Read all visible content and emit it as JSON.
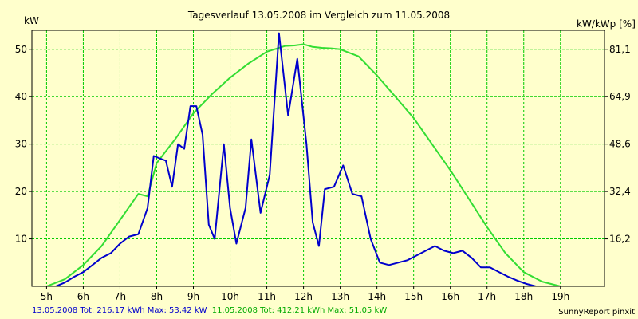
{
  "chart_data": {
    "type": "line",
    "title": "Tagesverlauf 13.05.2008 im Vergleich zum 11.05.2008",
    "ylabel_left": "kW",
    "ylabel_right": "kW/kWp [%]",
    "x_ticks": [
      "5h",
      "6h",
      "7h",
      "8h",
      "9h",
      "10h",
      "11h",
      "12h",
      "13h",
      "14h",
      "15h",
      "16h",
      "17h",
      "18h",
      "19h"
    ],
    "y_left_ticks": [
      10,
      20,
      30,
      40,
      50
    ],
    "y_right_ticks": [
      "16,2",
      "32,4",
      "48,6",
      "64,9",
      "81,1"
    ],
    "xlim": [
      4.6,
      20.2
    ],
    "ylim": [
      0,
      54
    ],
    "grid": true,
    "series": [
      {
        "name": "13.05.2008",
        "color": "#0000cc",
        "x": [
          5.0,
          5.25,
          5.5,
          5.75,
          6.0,
          6.25,
          6.5,
          6.75,
          7.0,
          7.25,
          7.5,
          7.75,
          7.92,
          8.08,
          8.25,
          8.42,
          8.58,
          8.75,
          8.92,
          9.08,
          9.25,
          9.42,
          9.58,
          9.83,
          10.0,
          10.17,
          10.42,
          10.58,
          10.83,
          11.08,
          11.33,
          11.58,
          11.83,
          12.08,
          12.25,
          12.42,
          12.58,
          12.83,
          13.08,
          13.33,
          13.58,
          13.83,
          14.08,
          14.33,
          14.58,
          14.83,
          15.08,
          15.33,
          15.58,
          15.83,
          16.08,
          16.33,
          16.58,
          16.83,
          17.08,
          17.33,
          17.58,
          17.83,
          18.08,
          18.33,
          18.58,
          18.83,
          19.08,
          19.33,
          19.58,
          19.83
        ],
        "y": [
          0,
          0,
          0.8,
          2,
          3,
          4.5,
          6,
          7,
          9,
          10.5,
          11,
          16.5,
          27.5,
          27,
          26.5,
          21,
          30,
          29,
          38,
          38,
          32,
          13,
          10,
          30,
          16.5,
          9,
          16.5,
          31,
          15.5,
          23.5,
          53.4,
          36,
          48,
          30,
          13.5,
          8.5,
          20.5,
          21,
          25.5,
          19.5,
          19,
          10,
          5,
          4.5,
          5,
          5.5,
          6.5,
          7.5,
          8.5,
          7.5,
          7,
          7.5,
          6,
          4,
          4,
          3,
          2,
          1.2,
          0.5,
          0,
          0,
          0,
          0,
          0,
          0,
          0
        ]
      },
      {
        "name": "11.05.2008",
        "color": "#33dd33",
        "x": [
          4.6,
          5.0,
          5.5,
          6.0,
          6.5,
          7.0,
          7.5,
          7.75,
          8.0,
          8.5,
          9.0,
          9.5,
          10.0,
          10.5,
          11.0,
          11.5,
          11.75,
          12.0,
          12.25,
          12.5,
          12.75,
          13.0,
          13.5,
          14.0,
          14.5,
          15.0,
          15.5,
          16.0,
          16.5,
          17.0,
          17.5,
          18.0,
          18.5,
          19.0,
          19.5,
          19.9,
          20.2
        ],
        "y": [
          0,
          0,
          1.5,
          4.5,
          8.5,
          14,
          19.5,
          19,
          26,
          31,
          36.5,
          40.5,
          44,
          47,
          49.5,
          50.7,
          50.8,
          51.05,
          50.5,
          50.3,
          50.2,
          50,
          48.5,
          44.5,
          40,
          35.5,
          30,
          24.5,
          18.5,
          12.5,
          7,
          3,
          1,
          0,
          0,
          0,
          0
        ]
      }
    ]
  },
  "footer": {
    "series1_label": "13.05.2008 Tot: 216,17 kWh Max: 53,42 kW",
    "series2_label": "11.05.2008 Tot: 412,21 kWh Max: 51,05 kW",
    "credit": "SunnyReport pinxit"
  },
  "colors": {
    "background": "#ffffcc",
    "grid": "#00cc00",
    "axis": "#000000"
  }
}
